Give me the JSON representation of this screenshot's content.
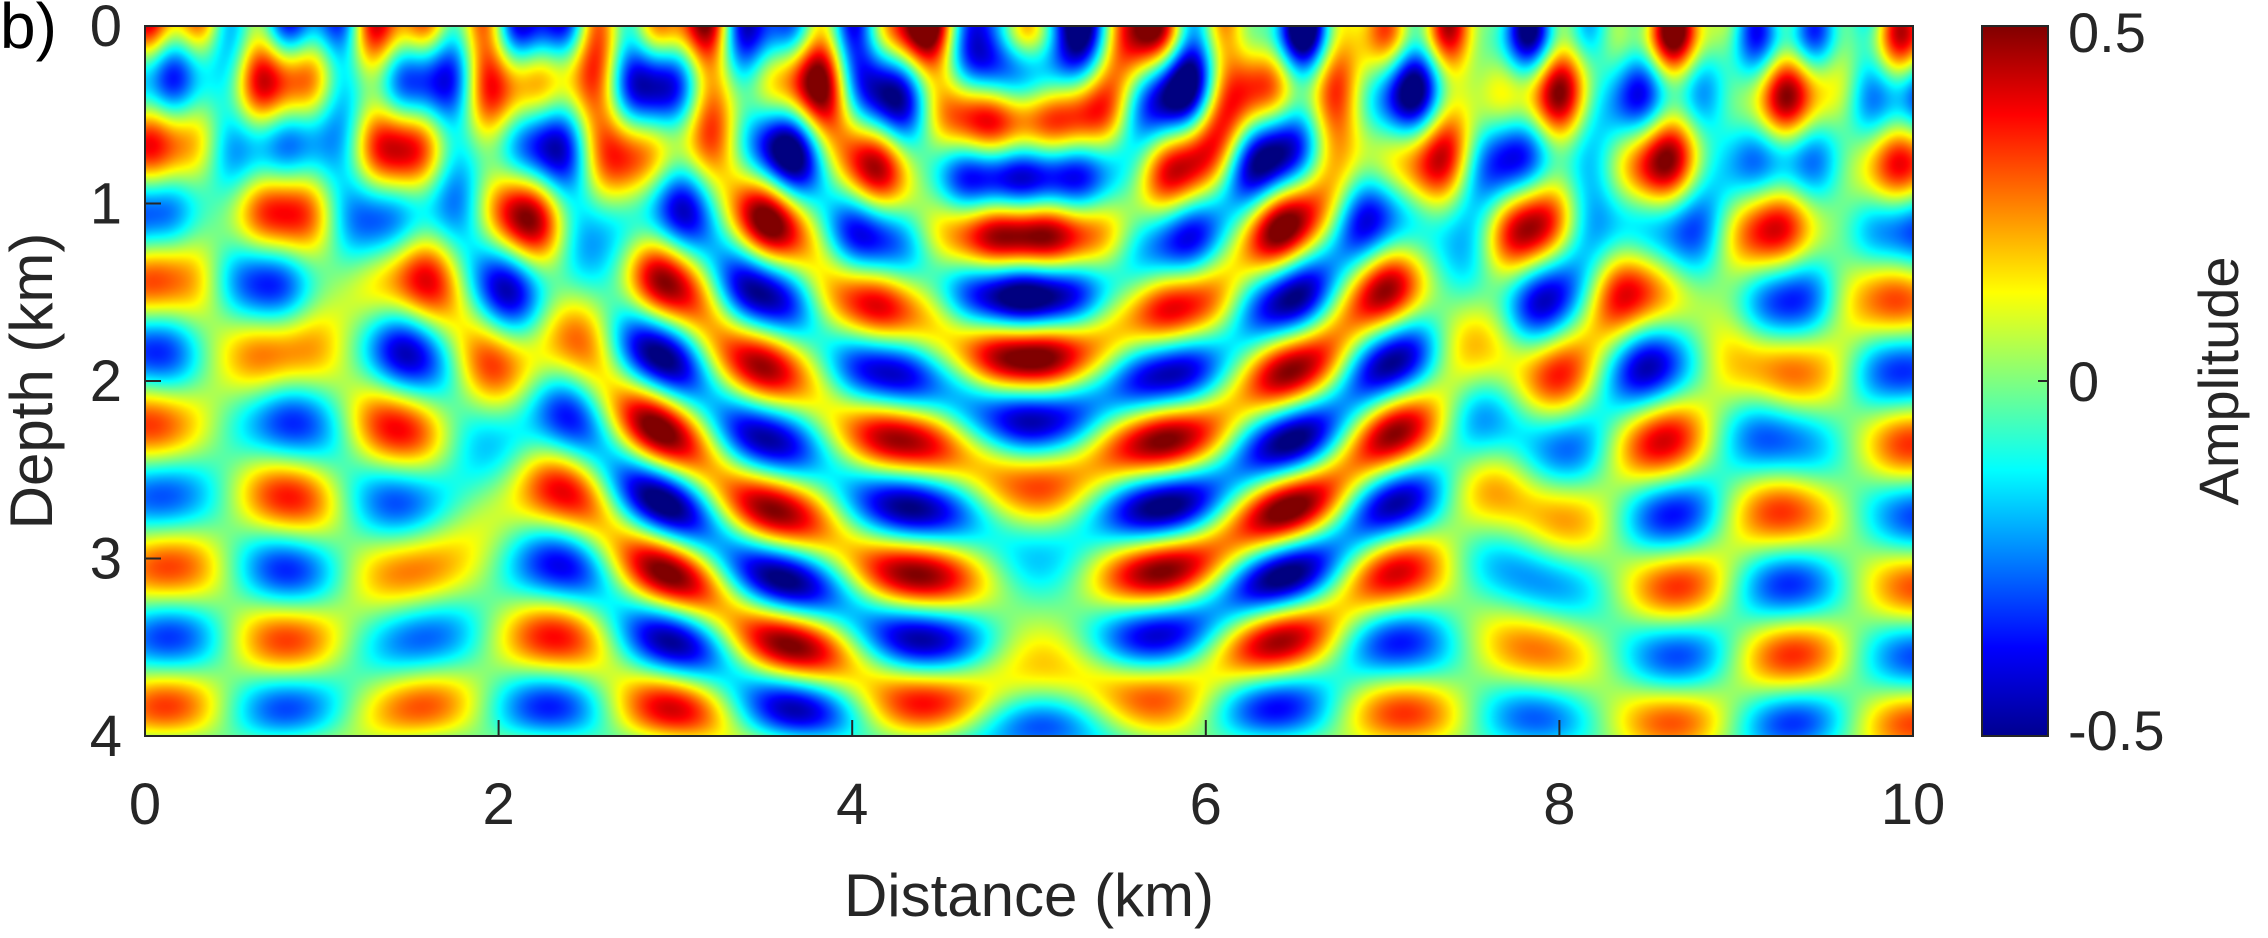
{
  "panel_label": "b)",
  "chart_data": {
    "type": "heatmap",
    "title": "",
    "xlabel": "Distance (km)",
    "ylabel": "Depth (km)",
    "xlim": [
      0,
      10
    ],
    "ylim": [
      0,
      4
    ],
    "y_reversed": true,
    "x_ticks": [
      0,
      2,
      4,
      6,
      8,
      10
    ],
    "y_ticks": [
      0,
      1,
      2,
      3,
      4
    ],
    "grid": false,
    "colormap": "jet",
    "colorbar": {
      "label": "Amplitude",
      "limits": [
        -0.5,
        0.5
      ],
      "ticks": [
        0.5,
        0,
        -0.5
      ],
      "tick_labels": [
        "0.5",
        "0",
        "-0.5"
      ],
      "placement": "right"
    },
    "source_location": {
      "x": 5,
      "z": 0
    },
    "wavefront_radii_km": [
      0.25,
      0.55,
      0.85,
      1.25,
      1.65,
      2.05,
      2.45,
      2.9,
      3.3,
      3.75,
      4.15
    ]
  }
}
